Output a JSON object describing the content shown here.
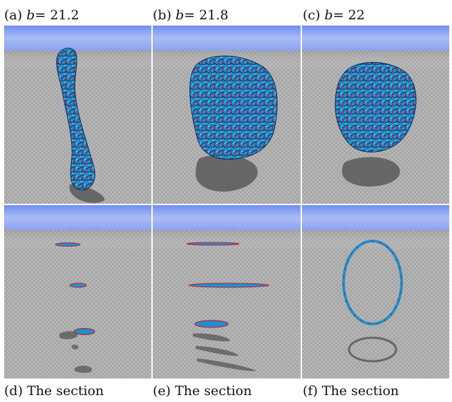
{
  "figure": {
    "top_captions": [
      {
        "letter": "(a)",
        "var": "b",
        "eq": "= 21.2"
      },
      {
        "letter": "(b)",
        "var": "b",
        "eq": "= 21.8"
      },
      {
        "letter": "(c)",
        "var": "b",
        "eq": "= 22"
      }
    ],
    "bottom_captions": [
      {
        "text": "(d) The section"
      },
      {
        "text": "(e) The section"
      },
      {
        "text": "(f) The section"
      }
    ]
  },
  "colors": {
    "sky": "#8fa6f2",
    "floor": "#b3b3b3",
    "shell_blue": "#2aa6e0",
    "shell_red": "#c0202a",
    "shadow": "#5a5a5a"
  }
}
